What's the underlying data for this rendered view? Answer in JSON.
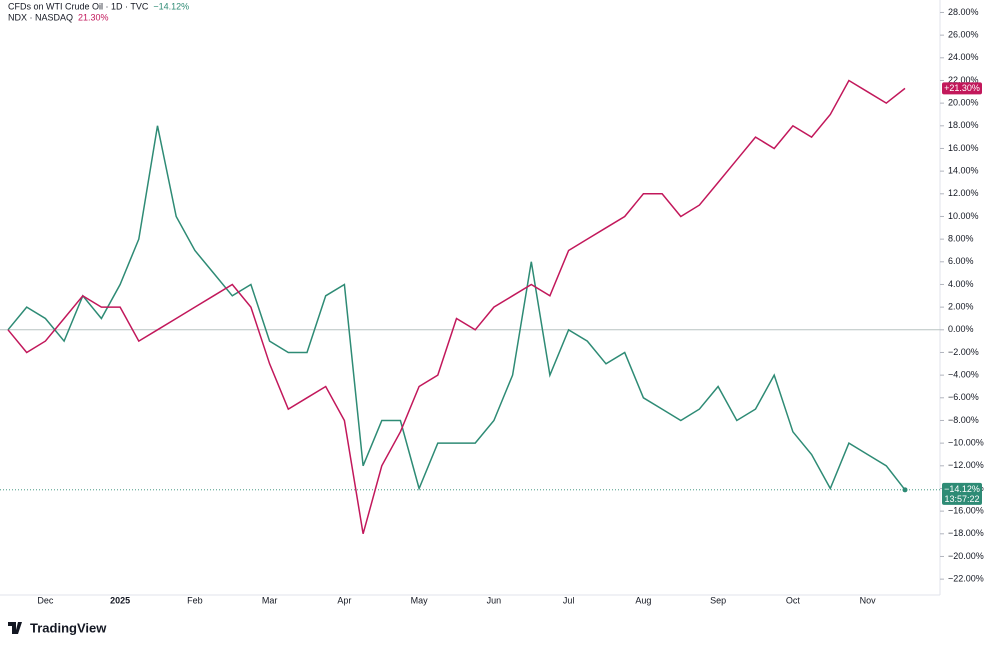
{
  "chart_data": {
    "type": "line",
    "brand": "TradingView",
    "categories": [
      null,
      null,
      "Dec",
      null,
      null,
      null,
      "2025",
      null,
      null,
      null,
      "Feb",
      null,
      null,
      null,
      "Mar",
      null,
      null,
      null,
      "Apr",
      null,
      null,
      null,
      "May",
      null,
      null,
      null,
      "Jun",
      null,
      null,
      null,
      "Jul",
      null,
      null,
      null,
      "Aug",
      null,
      null,
      null,
      "Sep",
      null,
      null,
      null,
      "Oct",
      null,
      null,
      null,
      "Nov",
      null,
      null
    ],
    "series": [
      {
        "name": "CFDs on WTI Crude Oil · 1D · TVC",
        "color": "#2e8b75",
        "legend_label": "−14.12%",
        "badge_label": "−14.12%",
        "countdown": "13:57:22",
        "values": [
          0,
          2,
          1,
          -1,
          3,
          1,
          4,
          8,
          18,
          10,
          7,
          5,
          3,
          4,
          -1,
          -2,
          -2,
          3,
          4,
          -12,
          -8,
          -8,
          -14,
          -10,
          -10,
          -10,
          -8,
          -4,
          6,
          -4,
          0,
          -1,
          -3,
          -2,
          -6,
          -7,
          -8,
          -7,
          -5,
          -8,
          -7,
          -4,
          -9,
          -11,
          -14,
          -10,
          -11,
          -12,
          -14.12
        ]
      },
      {
        "name": "NDX · NASDAQ",
        "color": "#c2185b",
        "legend_label": "21.30%",
        "badge_label": "+21.30%",
        "values": [
          0,
          -2,
          -1,
          1,
          3,
          2,
          2,
          -1,
          0,
          1,
          2,
          3,
          4,
          2,
          -3,
          -7,
          -6,
          -5,
          -8,
          -18,
          -12,
          -9,
          -5,
          -4,
          1,
          0,
          2,
          3,
          4,
          3,
          7,
          8,
          9,
          10,
          12,
          12,
          10,
          11,
          13,
          15,
          17,
          16,
          18,
          17,
          19,
          22,
          21,
          20,
          21.3
        ]
      }
    ],
    "ylim": [
      -23.4,
      29.1
    ],
    "yticks": [
      {
        "value": 28,
        "label": "28.00%"
      },
      {
        "value": 26,
        "label": "26.00%"
      },
      {
        "value": 24,
        "label": "24.00%"
      },
      {
        "value": 22,
        "label": "22.00%"
      },
      {
        "value": 20,
        "label": "20.00%"
      },
      {
        "value": 18,
        "label": "18.00%"
      },
      {
        "value": 16,
        "label": "16.00%"
      },
      {
        "value": 14,
        "label": "14.00%"
      },
      {
        "value": 12,
        "label": "12.00%"
      },
      {
        "value": 10,
        "label": "10.00%"
      },
      {
        "value": 8,
        "label": "8.00%"
      },
      {
        "value": 6,
        "label": "6.00%"
      },
      {
        "value": 4,
        "label": "4.00%"
      },
      {
        "value": 2,
        "label": "2.00%"
      },
      {
        "value": 0,
        "label": "0.00%"
      },
      {
        "value": -2,
        "label": "−2.00%"
      },
      {
        "value": -4,
        "label": "−4.00%"
      },
      {
        "value": -6,
        "label": "−6.00%"
      },
      {
        "value": -8,
        "label": "−8.00%"
      },
      {
        "value": -10,
        "label": "−10.00%"
      },
      {
        "value": -12,
        "label": "−12.00%"
      },
      {
        "value": -14,
        "label": "−14.00%"
      },
      {
        "value": -16,
        "label": "−16.00%"
      },
      {
        "value": -18,
        "label": "−18.00%"
      },
      {
        "value": -20,
        "label": "−20.00%"
      },
      {
        "value": -22,
        "label": "−22.00%"
      }
    ],
    "zero_line": true
  }
}
